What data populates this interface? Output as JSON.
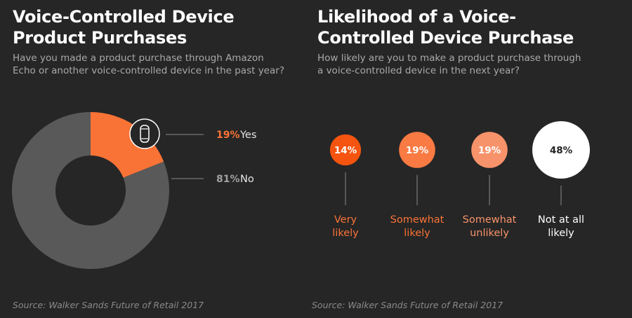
{
  "left": {
    "title": "Voice-Controlled Device\nProduct Purchases",
    "subtitle": "Have you made a product purchase through Amazon\nEcho or another voice-controlled device in the past year?",
    "source": "Source: Walker Sands Future of Retail 2017"
  },
  "right": {
    "title": "Likelihood of a Voice-\nControlled Device Purchase",
    "subtitle": "How likely are you to make a product purchase through\na voice-controlled device in the next year?",
    "source": "Source: Walker Sands Future of Retail 2017"
  },
  "icons": {
    "device": "smart-speaker-icon"
  },
  "colors": {
    "background": "#262626",
    "yes": "#f97336",
    "no": "#595959",
    "very_likely": "#f4540f",
    "somewhat_likely": "#f97a42",
    "somewhat_unlikely": "#f7936a",
    "not_at_all_likely": "#ffffff"
  },
  "chart_data": [
    {
      "type": "pie",
      "title": "Voice-Controlled Device Product Purchases",
      "slices": [
        {
          "label": "Yes",
          "pct_text": "19%",
          "value": 19
        },
        {
          "label": "No",
          "pct_text": "81%",
          "value": 81
        }
      ]
    },
    {
      "type": "bubble",
      "title": "Likelihood of a Voice-Controlled Device Purchase",
      "categories": [
        "Very likely",
        "Somewhat likely",
        "Somewhat unlikely",
        "Not at all likely"
      ],
      "category_lines": [
        [
          "Very",
          "likely"
        ],
        [
          "Somewhat",
          "likely"
        ],
        [
          "Somewhat",
          "unlikely"
        ],
        [
          "Not at all",
          "likely"
        ]
      ],
      "pct_texts": [
        "14%",
        "19%",
        "19%",
        "48%"
      ],
      "values": [
        14,
        19,
        19,
        48
      ]
    }
  ]
}
